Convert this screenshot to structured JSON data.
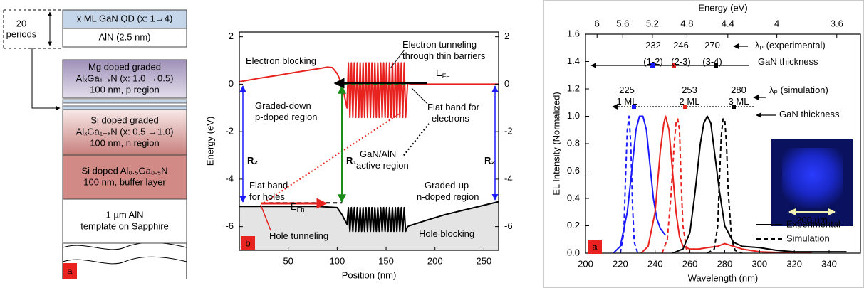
{
  "diagram": {
    "period_label": [
      "20",
      "periods"
    ],
    "layers": [
      {
        "lines": [
          "x ML GaN QD (x: 1→4)"
        ]
      },
      {
        "lines": [
          "AlN (2.5 nm)"
        ]
      },
      {
        "lines": [
          "Mg doped graded",
          "AlₓGa₁₋ₓN (x: 1.0 →0.5)",
          "100 nm, p region"
        ]
      },
      {
        "lines": [
          "Si doped graded",
          "AlₓGa₁₋ₓN (x: 0.5 →1.0)",
          "100 nm, n region"
        ]
      },
      {
        "lines": [
          "Si doped Al₀.₅Ga₀.₅N",
          "100 nm, buffer layer"
        ]
      },
      {
        "lines": [
          "1 µm AlN",
          "template on Sapphire"
        ]
      }
    ],
    "panel_label": "a"
  },
  "chart_data": [
    {
      "type": "line",
      "panel_label": "b",
      "x_label": "Position (nm)",
      "y_label": "Energy (eV)",
      "xlim": [
        0,
        265
      ],
      "xticks": [
        50,
        100,
        150,
        200,
        250
      ],
      "ylim": [
        -7,
        2.2
      ],
      "yticks": [
        -6,
        -4,
        -2,
        0,
        2
      ],
      "y2lim": [
        -7,
        2.2
      ],
      "y2ticks": [
        -6,
        -4,
        -2,
        0,
        2
      ],
      "series": [
        {
          "color": "#000000",
          "style": "solid",
          "fill": "#e4e4e4",
          "x": [
            0,
            20,
            40,
            60,
            80,
            100,
            105,
            110,
            111.5,
            113,
            114.5,
            116,
            117.5,
            119,
            120.5,
            122,
            123.5,
            125,
            126.5,
            128,
            129.5,
            131,
            132.5,
            134,
            135.5,
            137,
            138.5,
            140,
            141.5,
            143,
            144.5,
            146,
            147.5,
            149,
            150.5,
            152,
            153.5,
            155,
            156.5,
            158,
            159.5,
            161,
            162.5,
            164,
            165.5,
            167,
            168.5,
            170,
            172,
            175,
            190,
            210,
            230,
            250,
            265
          ],
          "values": [
            -5.15,
            -5.15,
            -5.15,
            -5.15,
            -5.15,
            -5.2,
            -5.5,
            -5.9,
            -5.2,
            -6.2,
            -5.2,
            -6.2,
            -5.2,
            -6.2,
            -5.2,
            -6.2,
            -5.2,
            -6.2,
            -5.2,
            -6.2,
            -5.2,
            -6.2,
            -5.2,
            -6.2,
            -5.2,
            -6.2,
            -5.2,
            -6.2,
            -5.2,
            -6.2,
            -5.2,
            -6.2,
            -5.2,
            -6.2,
            -5.2,
            -6.2,
            -5.2,
            -6.2,
            -5.2,
            -6.2,
            -5.2,
            -6.2,
            -5.2,
            -6.2,
            -5.2,
            -6.2,
            -5.2,
            -6.2,
            -6.0,
            -5.95,
            -5.75,
            -5.5,
            -5.3,
            -5.1,
            -4.95
          ]
        },
        {
          "color": "#e8231f",
          "style": "solid",
          "x": [
            0,
            20,
            40,
            60,
            80,
            90,
            95,
            100,
            105,
            110,
            111.5,
            113,
            114.5,
            116,
            117.5,
            119,
            120.5,
            122,
            123.5,
            125,
            126.5,
            128,
            129.5,
            131,
            132.5,
            134,
            135.5,
            137,
            138.5,
            140,
            141.5,
            143,
            144.5,
            146,
            147.5,
            149,
            150.5,
            152,
            153.5,
            155,
            156.5,
            158,
            159.5,
            161,
            162.5,
            164,
            165.5,
            167,
            168.5,
            170,
            172,
            175,
            180,
            265
          ],
          "values": [
            0.1,
            0.25,
            0.38,
            0.52,
            0.65,
            0.72,
            0.7,
            0.45,
            0.0,
            -1.0,
            0.9,
            -1.4,
            0.9,
            -1.4,
            0.9,
            -1.4,
            0.9,
            -1.4,
            0.9,
            -1.4,
            0.9,
            -1.4,
            0.9,
            -1.4,
            0.9,
            -1.4,
            0.9,
            -1.4,
            0.9,
            -1.4,
            0.9,
            -1.4,
            0.9,
            -1.4,
            0.9,
            -1.4,
            0.9,
            -1.4,
            0.9,
            -1.4,
            0.9,
            -1.4,
            0.9,
            -1.4,
            0.9,
            -1.4,
            0.9,
            -1.4,
            0.9,
            -1.4,
            0.05,
            0,
            0,
            0
          ]
        },
        {
          "color": "#1a8c1a",
          "style": "dashed",
          "x": [
            100,
            172
          ],
          "values": [
            0,
            0
          ]
        },
        {
          "color": "#000000",
          "style": "dashed",
          "x": [
            30,
            105
          ],
          "values": [
            -5.0,
            -5.0
          ]
        },
        {
          "color": "#e8231f",
          "style": "dotted",
          "x": [
            25,
            165
          ],
          "values": [
            -5.0,
            -1.2
          ]
        },
        {
          "color": "#000000",
          "style": "dotted",
          "x": [
            168,
            195
          ],
          "values": [
            -3.0,
            -1.6
          ]
        }
      ],
      "annotations": [
        {
          "text": "Electron blocking"
        },
        {
          "text": "Electron tunneling"
        },
        {
          "text": "through thin barriers"
        },
        {
          "text": "E",
          "sub": "Fe",
          "color": "#e8231f"
        },
        {
          "text": "Graded-down"
        },
        {
          "text": "p-doped region"
        },
        {
          "text": "Flat band for"
        },
        {
          "text": "electrons"
        },
        {
          "text": "R₁",
          "color": "#1a8c1a"
        },
        {
          "text": "R₂",
          "color": "#1a1aff"
        },
        {
          "text": "R₂",
          "color": "#1a1aff"
        },
        {
          "text": "GaN/AlN"
        },
        {
          "text": "active region"
        },
        {
          "text": "Flat band"
        },
        {
          "text": "for holes"
        },
        {
          "text": "E",
          "sub": "Fh"
        },
        {
          "text": "Graded-up"
        },
        {
          "text": "n-doped region"
        },
        {
          "text": "Hole tunneling",
          "color": "#e8231f"
        },
        {
          "text": "Hole blocking"
        }
      ]
    },
    {
      "type": "line",
      "panel_label": "a",
      "x_label": "Wavelength (nm)",
      "y_label": "EL Intensity (Normalized)",
      "x2_label": "Energy (eV)",
      "xlim": [
        200,
        358
      ],
      "xticks": [
        200,
        220,
        240,
        260,
        280,
        300,
        320,
        340
      ],
      "x2ticks": [
        6,
        5.6,
        5.2,
        4.8,
        4.4,
        4,
        3.6
      ],
      "ylim": [
        0,
        1.6
      ],
      "yticks": [
        {
          "value": 0,
          "label": "0.0"
        },
        0.2,
        0.4,
        0.6,
        0.8,
        {
          "value": 1,
          "label": "1.0"
        },
        1.2,
        1.4,
        1.6
      ],
      "series": [
        {
          "color": "#1a1aff",
          "style": "solid",
          "x": [
            216,
            220,
            224,
            227,
            229,
            231,
            233,
            235,
            237,
            239,
            241,
            243,
            246
          ],
          "values": [
            0,
            0.05,
            0.3,
            0.65,
            0.9,
            1.0,
            1.0,
            0.9,
            0.65,
            0.4,
            0.25,
            0.18,
            0.13
          ]
        },
        {
          "color": "#1a1aff",
          "style": "dashed",
          "x": [
            220,
            222,
            223,
            224,
            225,
            226,
            227,
            228,
            230
          ],
          "values": [
            0,
            0.15,
            0.55,
            0.9,
            1.0,
            0.8,
            0.35,
            0.08,
            0
          ]
        },
        {
          "color": "#e8231f",
          "style": "solid",
          "x": [
            232,
            236,
            240,
            243,
            245,
            246,
            248,
            250,
            252,
            254,
            256,
            260,
            265,
            270,
            276,
            280,
            285,
            290,
            300,
            310,
            320,
            330
          ],
          "values": [
            0,
            0.05,
            0.3,
            0.75,
            0.95,
            1.0,
            0.9,
            0.6,
            0.3,
            0.12,
            0.05,
            0.03,
            0.03,
            0.04,
            0.05,
            0.07,
            0.05,
            0.03,
            0.01,
            0.005,
            0,
            0
          ]
        },
        {
          "color": "#e8231f",
          "style": "dashed",
          "x": [
            244,
            247,
            249,
            251,
            252,
            253,
            254,
            255,
            256,
            258,
            260
          ],
          "values": [
            0,
            0.1,
            0.4,
            0.8,
            0.95,
            0.98,
            0.9,
            0.5,
            0.2,
            0.03,
            0
          ]
        },
        {
          "color": "#000000",
          "style": "solid",
          "x": [
            250,
            256,
            260,
            263,
            266,
            268,
            270,
            272,
            274,
            277,
            280,
            285,
            290,
            300,
            310,
            320,
            330,
            340,
            350
          ],
          "values": [
            0,
            0.03,
            0.15,
            0.45,
            0.8,
            0.95,
            1.0,
            0.95,
            0.75,
            0.45,
            0.2,
            0.08,
            0.05,
            0.04,
            0.02,
            0.01,
            0.01,
            0.01,
            0.01
          ]
        },
        {
          "color": "#000000",
          "style": "dashed",
          "x": [
            270,
            274,
            276,
            277,
            278,
            279,
            280,
            281,
            282,
            284,
            286,
            290
          ],
          "values": [
            0,
            0.03,
            0.2,
            0.55,
            0.85,
            0.98,
            0.98,
            0.8,
            0.45,
            0.1,
            0.02,
            0
          ]
        }
      ],
      "legend": [
        {
          "name": "Experimental",
          "style": "solid",
          "color": "#000000"
        },
        {
          "name": "Simulation",
          "style": "dashed",
          "color": "#000000"
        }
      ],
      "annotations": [
        {
          "text": "232",
          "color": "#1a1aff"
        },
        {
          "text": "(1-2)",
          "color": "#1a1aff"
        },
        {
          "text": "246",
          "color": "#e8231f"
        },
        {
          "text": "(2-3)",
          "color": "#e8231f"
        },
        {
          "text": "270"
        },
        {
          "text": "(3-4)"
        },
        {
          "text": "λₚ (experimental)"
        },
        {
          "text": "GaN thickness"
        },
        {
          "text": "225",
          "color": "#1a1aff"
        },
        {
          "text": "1 ML",
          "color": "#1a1aff"
        },
        {
          "text": "253",
          "color": "#e8231f"
        },
        {
          "text": "2 ML",
          "color": "#e8231f"
        },
        {
          "text": "280"
        },
        {
          "text": "3 ML"
        },
        {
          "text": "λₚ (simulation)"
        },
        {
          "text": "GaN thickness"
        },
        {
          "text": "200 µm",
          "color": "#ffffff"
        }
      ]
    }
  ]
}
